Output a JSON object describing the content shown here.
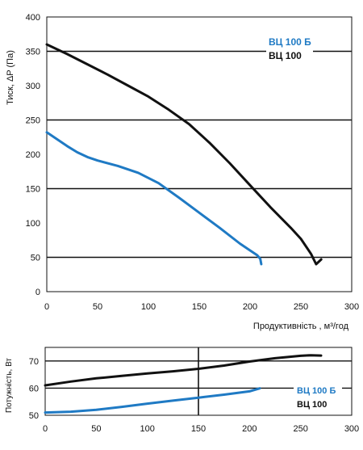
{
  "chart_data": [
    {
      "type": "line",
      "ylabel": "Тиск, ΔP (Па)",
      "xlabel": "Продуктивність , м³/год",
      "xlim": [
        0,
        300
      ],
      "ylim": [
        0,
        400
      ],
      "xticks": [
        0,
        50,
        100,
        150,
        200,
        250,
        300
      ],
      "yticks": [
        0,
        50,
        100,
        150,
        200,
        250,
        300,
        350,
        400
      ],
      "grid": "horizontal major lines at 50, 150, 250, 350",
      "legend": "top-right",
      "series": [
        {
          "name": "ВЦ 100 Б",
          "color": "#1f7ac4",
          "x": [
            0,
            10,
            20,
            30,
            40,
            50,
            70,
            90,
            110,
            130,
            150,
            170,
            190,
            200,
            207,
            210,
            211
          ],
          "y": [
            232,
            222,
            212,
            203,
            196,
            191,
            183,
            173,
            158,
            137,
            115,
            93,
            70,
            60,
            53,
            48,
            40
          ]
        },
        {
          "name": "ВЦ 100",
          "color": "#111111",
          "x": [
            0,
            20,
            40,
            60,
            80,
            100,
            120,
            140,
            160,
            180,
            200,
            220,
            240,
            250,
            260,
            265,
            270
          ],
          "y": [
            360,
            346,
            331,
            316,
            300,
            284,
            265,
            244,
            217,
            187,
            155,
            123,
            93,
            77,
            55,
            40,
            47
          ]
        }
      ]
    },
    {
      "type": "line",
      "ylabel": "Потужність, Вт",
      "xlim": [
        0,
        300
      ],
      "ylim": [
        50,
        75
      ],
      "xticks": [
        0,
        50,
        100,
        150,
        200,
        250,
        300
      ],
      "yticks": [
        50,
        60,
        70
      ],
      "grid": "horizontal lines at 50, 60, 70; vertical line at 150",
      "legend": "bottom-right",
      "series": [
        {
          "name": "ВЦ 100 Б",
          "color": "#1f7ac4",
          "x": [
            0,
            25,
            50,
            75,
            100,
            125,
            150,
            175,
            200,
            210
          ],
          "y": [
            51,
            51.3,
            52,
            53.1,
            54.3,
            55.4,
            56.5,
            57.6,
            58.8,
            59.9
          ]
        },
        {
          "name": "ВЦ 100",
          "color": "#111111",
          "x": [
            0,
            25,
            50,
            75,
            100,
            125,
            150,
            175,
            200,
            225,
            250,
            260,
            270
          ],
          "y": [
            61,
            62.4,
            63.6,
            64.5,
            65.4,
            66.2,
            67.1,
            68.3,
            69.8,
            71.0,
            71.9,
            72.1,
            72.0
          ]
        }
      ]
    }
  ]
}
